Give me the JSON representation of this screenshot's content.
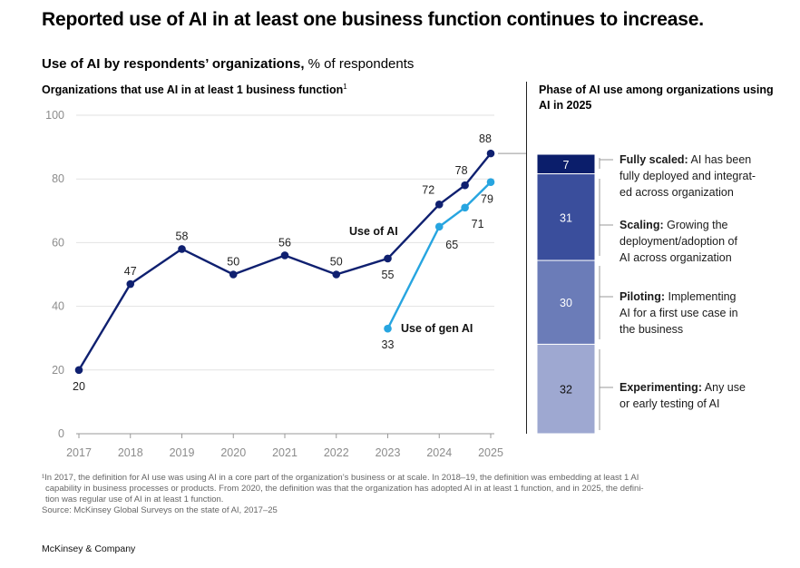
{
  "headline": "Reported use of AI in at least one business function continues to increase.",
  "subhead": {
    "bold": "Use of AI by respondents’ organizations,",
    "rest": " % of respondents"
  },
  "left_title": "Organizations that use AI in at least 1 business function",
  "left_title_sup": "1",
  "right_title": "Phase of AI use among organizations using AI in 2025",
  "colors": {
    "use_of_ai": "#0f2070",
    "gen_ai": "#27a5e0",
    "grid": "#e2e2e2",
    "phase_fully": "#0b1e6b",
    "phase_scaling": "#3a4e9c",
    "phase_piloting": "#6b7cb8",
    "phase_experimenting": "#9ea8d1"
  },
  "chart_data": [
    {
      "type": "line",
      "xlabel": "",
      "ylabel": "",
      "ylim": [
        0,
        100
      ],
      "yticks": [
        "0",
        "20",
        "40",
        "60",
        "80",
        "100"
      ],
      "xticks": [
        "2017",
        "2018",
        "2019",
        "2020",
        "2021",
        "2022",
        "2023",
        "2024",
        "2025"
      ],
      "grid": true,
      "series": [
        {
          "name": "Use of AI",
          "x": [
            2017,
            2018,
            2019,
            2020,
            2021,
            2022,
            2023,
            2024,
            2024.5,
            2025
          ],
          "values": [
            20,
            47,
            58,
            50,
            56,
            50,
            55,
            72,
            78,
            88
          ],
          "labels": [
            "20",
            "47",
            "58",
            "50",
            "56",
            "50",
            "55",
            "72",
            "78",
            "88"
          ]
        },
        {
          "name": "Use of gen AI",
          "x": [
            2023,
            2024,
            2024.5,
            2025
          ],
          "values": [
            33,
            65,
            71,
            79
          ],
          "labels": [
            "33",
            "65",
            "71",
            "79"
          ]
        }
      ]
    },
    {
      "type": "bar",
      "stacked": true,
      "categories": [
        "2025"
      ],
      "series": [
        {
          "name": "Fully scaled",
          "values": [
            7
          ],
          "label": "7"
        },
        {
          "name": "Scaling",
          "values": [
            31
          ],
          "label": "31"
        },
        {
          "name": "Piloting",
          "values": [
            30
          ],
          "label": "30"
        },
        {
          "name": "Experimenting",
          "values": [
            32
          ],
          "label": "32"
        }
      ]
    }
  ],
  "phases": [
    {
      "name": "Fully scaled:",
      "lines": [
        " AI has been",
        "fully deployed and integrat-",
        "ed across organization"
      ]
    },
    {
      "name": "Scaling:",
      "lines": [
        " Growing the",
        "deployment/adoption of",
        "AI across organization"
      ]
    },
    {
      "name": "Piloting:",
      "lines": [
        " Implementing",
        "AI for a first use case in",
        "the business"
      ]
    },
    {
      "name": "Experimenting:",
      "lines": [
        " Any use",
        "or early testing of AI"
      ]
    }
  ],
  "footnote": [
    "¹In 2017, the definition for AI use was using AI in a core part of the organization’s business or at scale. In 2018–19, the definition was embedding at least 1 AI",
    "capability in business processes or products. From 2020, the definition was that the organization has adopted AI in at least 1 function, and in 2025, the defini-",
    "tion was regular use of AI in at least 1 function.",
    "Source: McKinsey Global Surveys on the state of AI, 2017–25"
  ],
  "brand": "McKinsey & Company"
}
